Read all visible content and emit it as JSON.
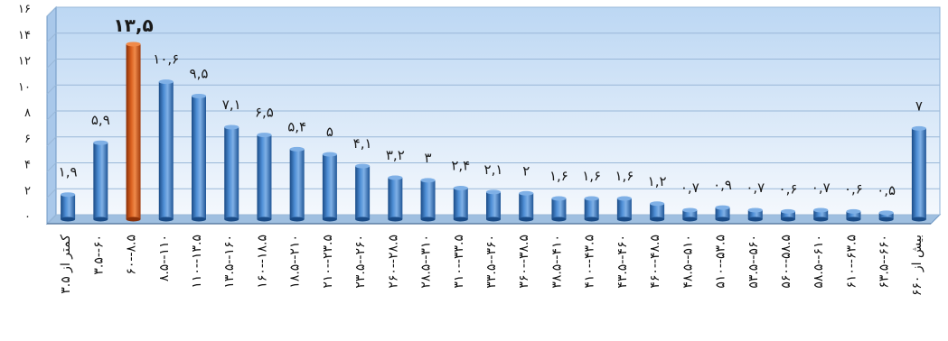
{
  "chart_data": {
    "type": "bar",
    "title": "",
    "xlabel": "",
    "ylabel": "",
    "ylim": [
      0,
      16
    ],
    "yticks": [
      "۰",
      "۲",
      "۴",
      "۶",
      "۸",
      "۱۰",
      "۱۲",
      "۱۴",
      "۱۶"
    ],
    "grid": true,
    "legend": "none",
    "categories": [
      "کمتر از ۳.۵",
      "۳.۵--۶۰",
      "۶۰--۸.۵",
      "۸.۵--۱۱۰",
      "۱۱۰--۱۳.۵",
      "۱۳.۵--۱۶۰",
      "۱۶۰--۱۸.۵",
      "۱۸.۵--۲۱۰",
      "۲۱۰--۲۳.۵",
      "۲۳.۵--۲۶۰",
      "۲۶۰--۲۸.۵",
      "۲۸.۵--۳۱۰",
      "۳۱۰--۳۳.۵",
      "۳۳.۵--۳۶۰",
      "۳۶۰--۳۸.۵",
      "۳۸.۵--۴۱۰",
      "۴۱۰--۴۳.۵",
      "۴۳.۵--۴۶۰",
      "۴۶۰--۴۸.۵",
      "۴۸.۵--۵۱۰",
      "۵۱۰--۵۳.۵",
      "۵۳.۵--۵۶۰",
      "۵۶۰--۵۸.۵",
      "۵۸.۵--۶۱۰",
      "۶۱۰--۶۳.۵",
      "۶۳.۵--۶۶۰",
      "بیش از ۶۶۰"
    ],
    "values": [
      1.9,
      5.9,
      13.5,
      10.6,
      9.5,
      7.1,
      6.5,
      5.4,
      5,
      4.1,
      3.2,
      3,
      2.4,
      2.1,
      2,
      1.6,
      1.6,
      1.6,
      1.2,
      0.7,
      0.9,
      0.7,
      0.6,
      0.7,
      0.6,
      0.5,
      7
    ],
    "value_labels": [
      "۱,۹",
      "۵,۹",
      "۱۳,۵",
      "۱۰,۶",
      "۹,۵",
      "۷,۱",
      "۶,۵",
      "۵,۴",
      "۵",
      "۴,۱",
      "۳,۲",
      "۳",
      "۲,۴",
      "۲,۱",
      "۲",
      "۱,۶",
      "۱,۶",
      "۱,۶",
      "۱,۲",
      "۰,۷",
      "۰,۹",
      "۰,۷",
      "۰,۶",
      "۰,۷",
      "۰,۶",
      "۰,۵",
      "۷"
    ],
    "highlight_index": 2,
    "colors": {
      "bar": "#2f6db4",
      "bar_light": "#7fb0e6",
      "bar_dark": "#1a4b86",
      "highlight": "#c8501a",
      "highlight_light": "#f08a4a",
      "highlight_dark": "#8a3008",
      "plot_top": "#cfe2f7",
      "plot_bottom": "#f6fafe",
      "floor": "#9fbfe0"
    }
  }
}
